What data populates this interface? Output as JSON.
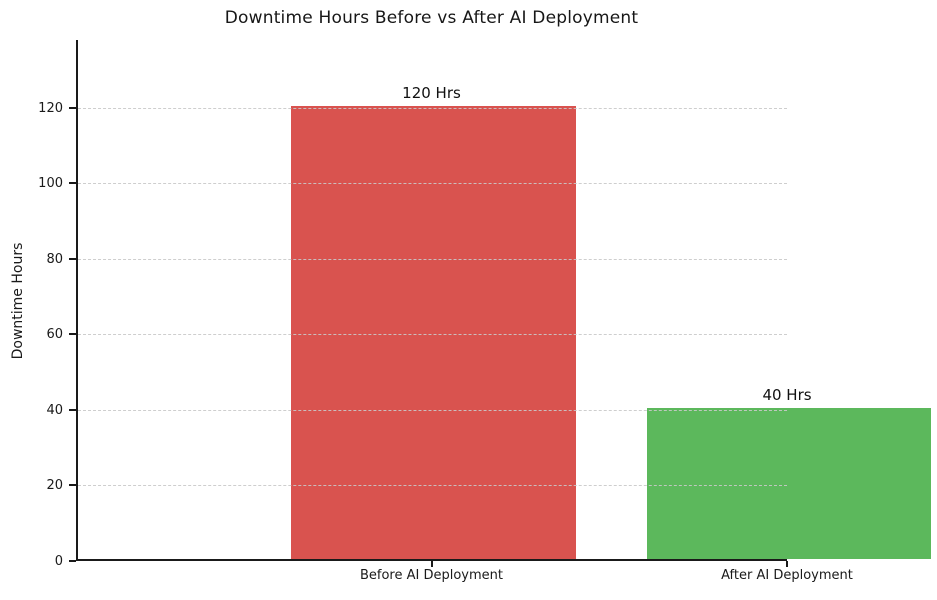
{
  "chart_data": {
    "type": "bar",
    "title": "Downtime Hours Before vs After AI Deployment",
    "xlabel": "",
    "ylabel": "Downtime Hours",
    "categories": [
      "Before AI Deployment",
      "After AI Deployment"
    ],
    "values": [
      120,
      40
    ],
    "bar_labels": [
      "120 Hrs",
      "40 Hrs"
    ],
    "bar_colors": [
      "#d9534f",
      "#5cb85c"
    ],
    "yticks": [
      0,
      20,
      40,
      60,
      80,
      100,
      120
    ],
    "ylim": [
      0,
      138
    ],
    "xlim": [
      -0.5,
      1.5
    ],
    "bar_width_fraction": 0.8,
    "grid": "horizontal-dashed",
    "gridline_color": "#c9c9c9",
    "legend_position": "none",
    "axis_color": "#1a1a1a",
    "background_color": "#ffffff"
  }
}
